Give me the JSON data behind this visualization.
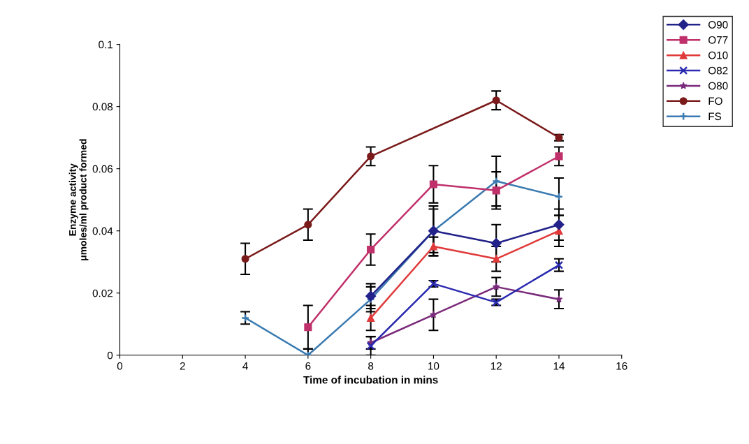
{
  "chart_data": {
    "type": "line",
    "xlabel": "Time of incubation in mins",
    "ylabel": "Enzyme activity\nμmoles/ml product formed",
    "xlim": [
      0,
      16
    ],
    "xticks": [
      0,
      2,
      4,
      6,
      8,
      10,
      12,
      14,
      16
    ],
    "ylim": [
      0,
      0.1
    ],
    "yticks": [
      0,
      0.02,
      0.04,
      0.06,
      0.08,
      0.1
    ],
    "grid": false,
    "legend": "top right",
    "line_style": "solid",
    "series": [
      {
        "name": "O90",
        "color": "#22228a",
        "marker": "diamond",
        "x": [
          8,
          10,
          12,
          14
        ],
        "values": [
          0.019,
          0.04,
          0.036,
          0.042
        ],
        "errors": [
          0.004,
          0.007,
          0.006,
          0.005
        ]
      },
      {
        "name": "O77",
        "color": "#c0306a",
        "marker": "square",
        "x": [
          6,
          8,
          10,
          12,
          14
        ],
        "values": [
          0.009,
          0.034,
          0.055,
          0.053,
          0.064
        ],
        "errors": [
          0.007,
          0.005,
          0.006,
          0.006,
          0.003
        ]
      },
      {
        "name": "O10",
        "color": "#e03a3a",
        "marker": "triangle",
        "x": [
          8,
          10,
          12,
          14
        ],
        "values": [
          0.012,
          0.035,
          0.031,
          0.04
        ],
        "errors": [
          0.004,
          0.003,
          0.004,
          0.005
        ]
      },
      {
        "name": "O82",
        "color": "#2a2ab0",
        "marker": "cross",
        "x": [
          8,
          10,
          12,
          14
        ],
        "values": [
          0.003,
          0.023,
          0.017,
          0.029
        ],
        "errors": [
          0.003,
          0.001,
          0.001,
          0.002
        ]
      },
      {
        "name": "O80",
        "color": "#7a2a7a",
        "marker": "star",
        "x": [
          8,
          10,
          12,
          14
        ],
        "values": [
          0.004,
          0.013,
          0.022,
          0.018
        ],
        "errors": [
          0.002,
          0.005,
          0.003,
          0.003
        ]
      },
      {
        "name": "FO",
        "color": "#7a1a1a",
        "marker": "circle",
        "x": [
          4,
          6,
          8,
          12,
          14
        ],
        "values": [
          0.031,
          0.042,
          0.064,
          0.082,
          0.07
        ],
        "errors": [
          0.005,
          0.005,
          0.003,
          0.003,
          0.001
        ]
      },
      {
        "name": "FS",
        "color": "#3a7ab0",
        "marker": "plus",
        "x": [
          4,
          6,
          8,
          10,
          12,
          14
        ],
        "values": [
          0.012,
          0.0,
          0.018,
          0.04,
          0.056,
          0.051
        ],
        "errors": [
          0.002,
          0.002,
          0.004,
          0.008,
          0.008,
          0.006
        ]
      }
    ]
  }
}
